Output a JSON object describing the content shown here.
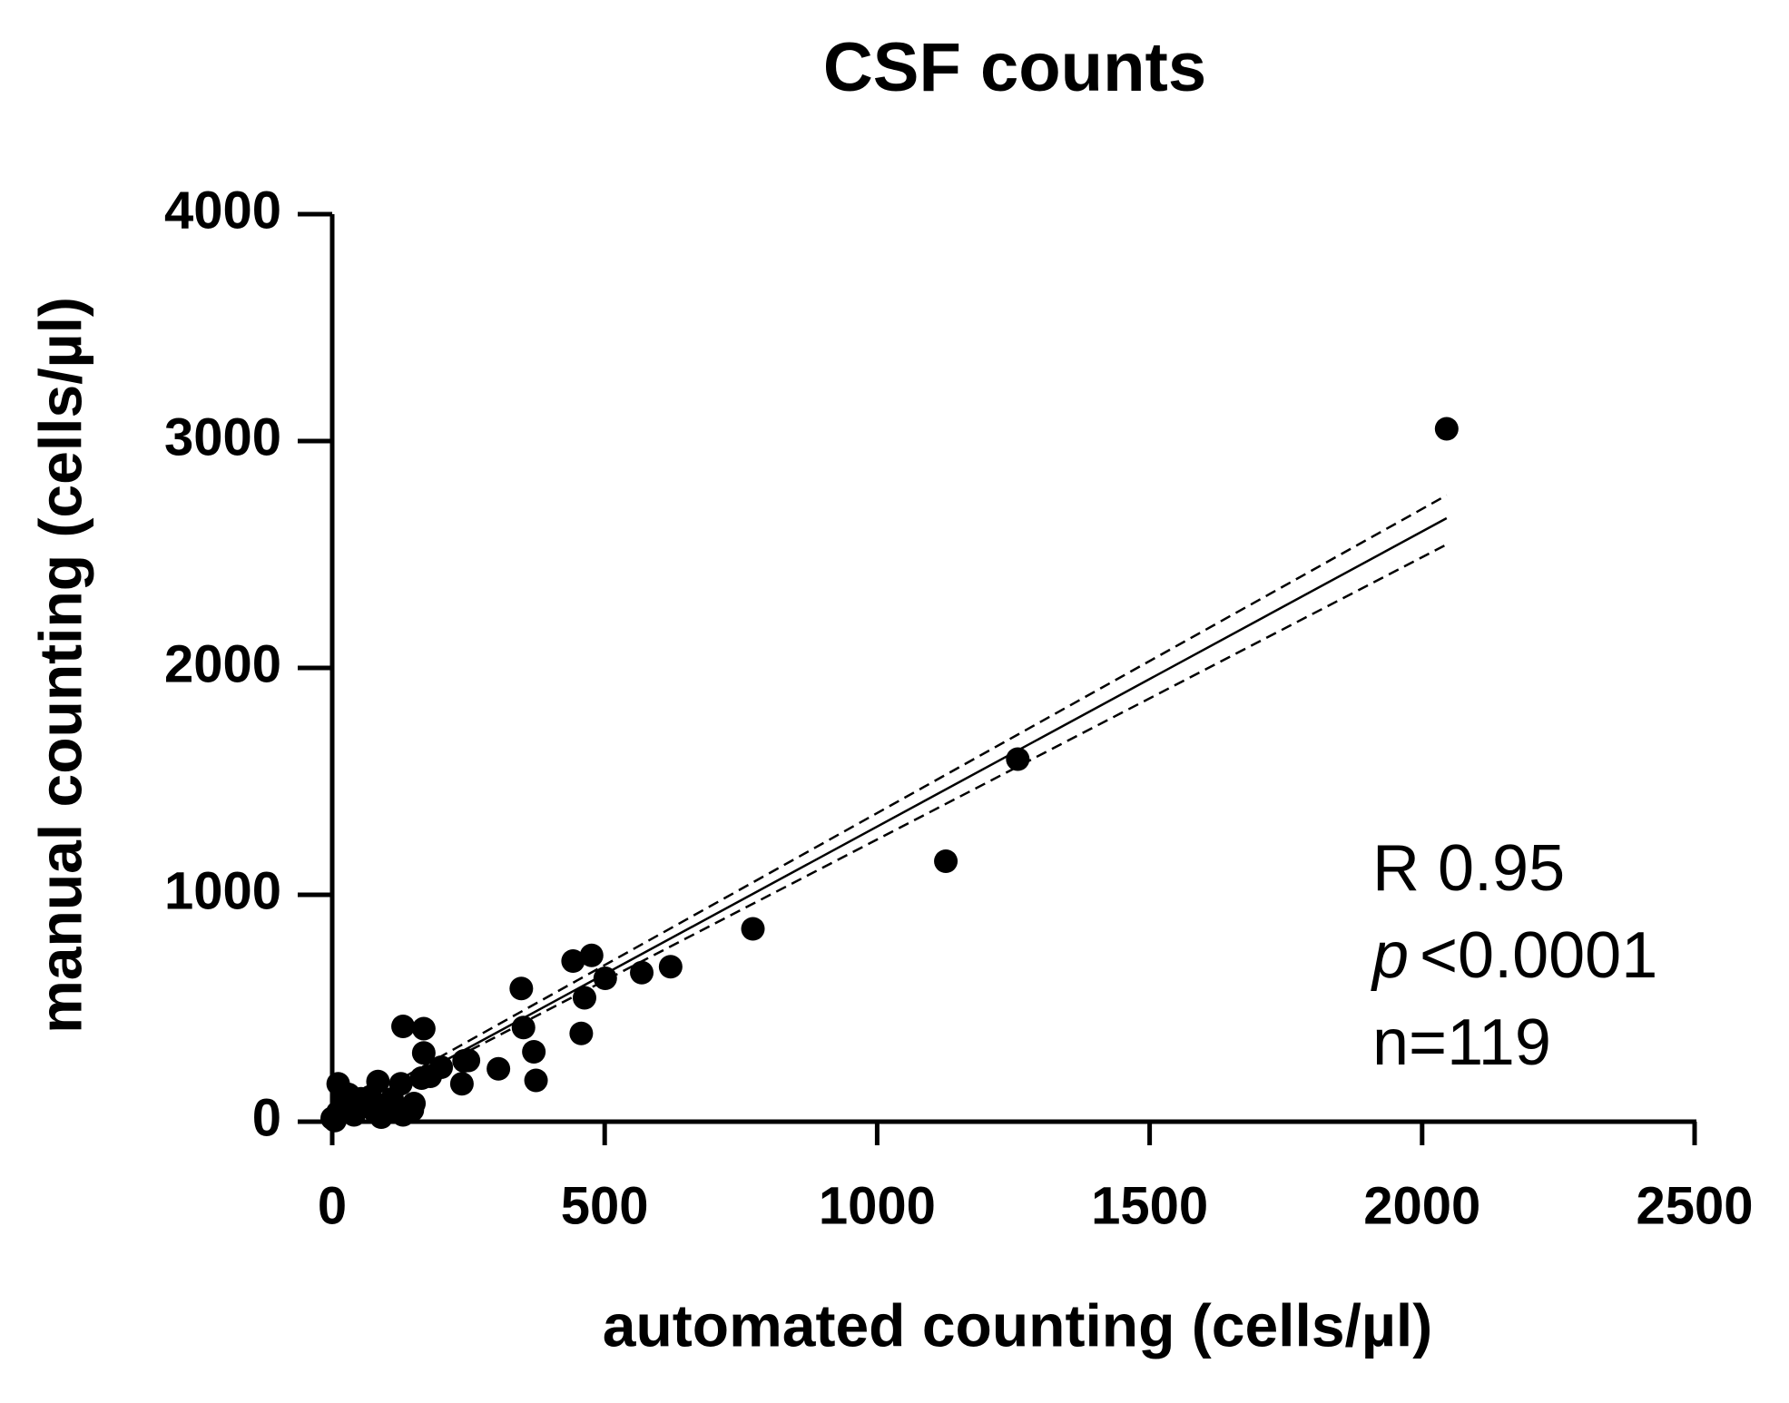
{
  "chart_data": {
    "type": "scatter",
    "title": "CSF counts",
    "xlabel": "automated counting (cells/µl)",
    "ylabel": "manual counting (cells/µl)",
    "xlim": [
      0,
      2500
    ],
    "xticks": [
      0,
      500,
      1000,
      1500,
      2000,
      2500
    ],
    "ylim": [
      0,
      4000
    ],
    "yticks": [
      0,
      1000,
      2000,
      3000,
      4000
    ],
    "grid": false,
    "series": [
      {
        "color": "#000000",
        "x": [
          2045,
          1258,
          1126,
          772,
          621,
          568,
          501,
          476,
          442,
          463,
          457,
          347,
          351,
          370,
          374,
          305,
          242,
          238,
          168,
          130,
          168,
          164,
          84,
          126,
          147,
          11,
          21,
          53,
          0,
          20,
          40,
          60,
          80,
          100,
          110,
          130,
          5,
          30,
          70,
          90,
          150,
          180,
          200,
          250,
          10,
          45
        ],
        "y": [
          3054,
          1598,
          1148,
          850,
          683,
          657,
          632,
          733,
          708,
          546,
          389,
          587,
          415,
          308,
          182,
          233,
          268,
          167,
          410,
          420,
          303,
          192,
          177,
          167,
          51,
          167,
          91,
          101,
          15,
          50,
          30,
          80,
          40,
          60,
          100,
          30,
          5,
          120,
          110,
          20,
          80,
          200,
          240,
          270,
          40,
          70
        ]
      }
    ],
    "lines": [
      {
        "style": "solid",
        "x": [
          0,
          2045
        ],
        "y": [
          0,
          2660
        ]
      },
      {
        "style": "dashed",
        "x": [
          0,
          2045
        ],
        "y": [
          20,
          2761
        ]
      },
      {
        "style": "dashed",
        "x": [
          0,
          2045
        ],
        "y": [
          0,
          2544
        ]
      }
    ],
    "annotations": [
      "R 0.95",
      "p",
      "<0.0001",
      "n=119"
    ]
  }
}
